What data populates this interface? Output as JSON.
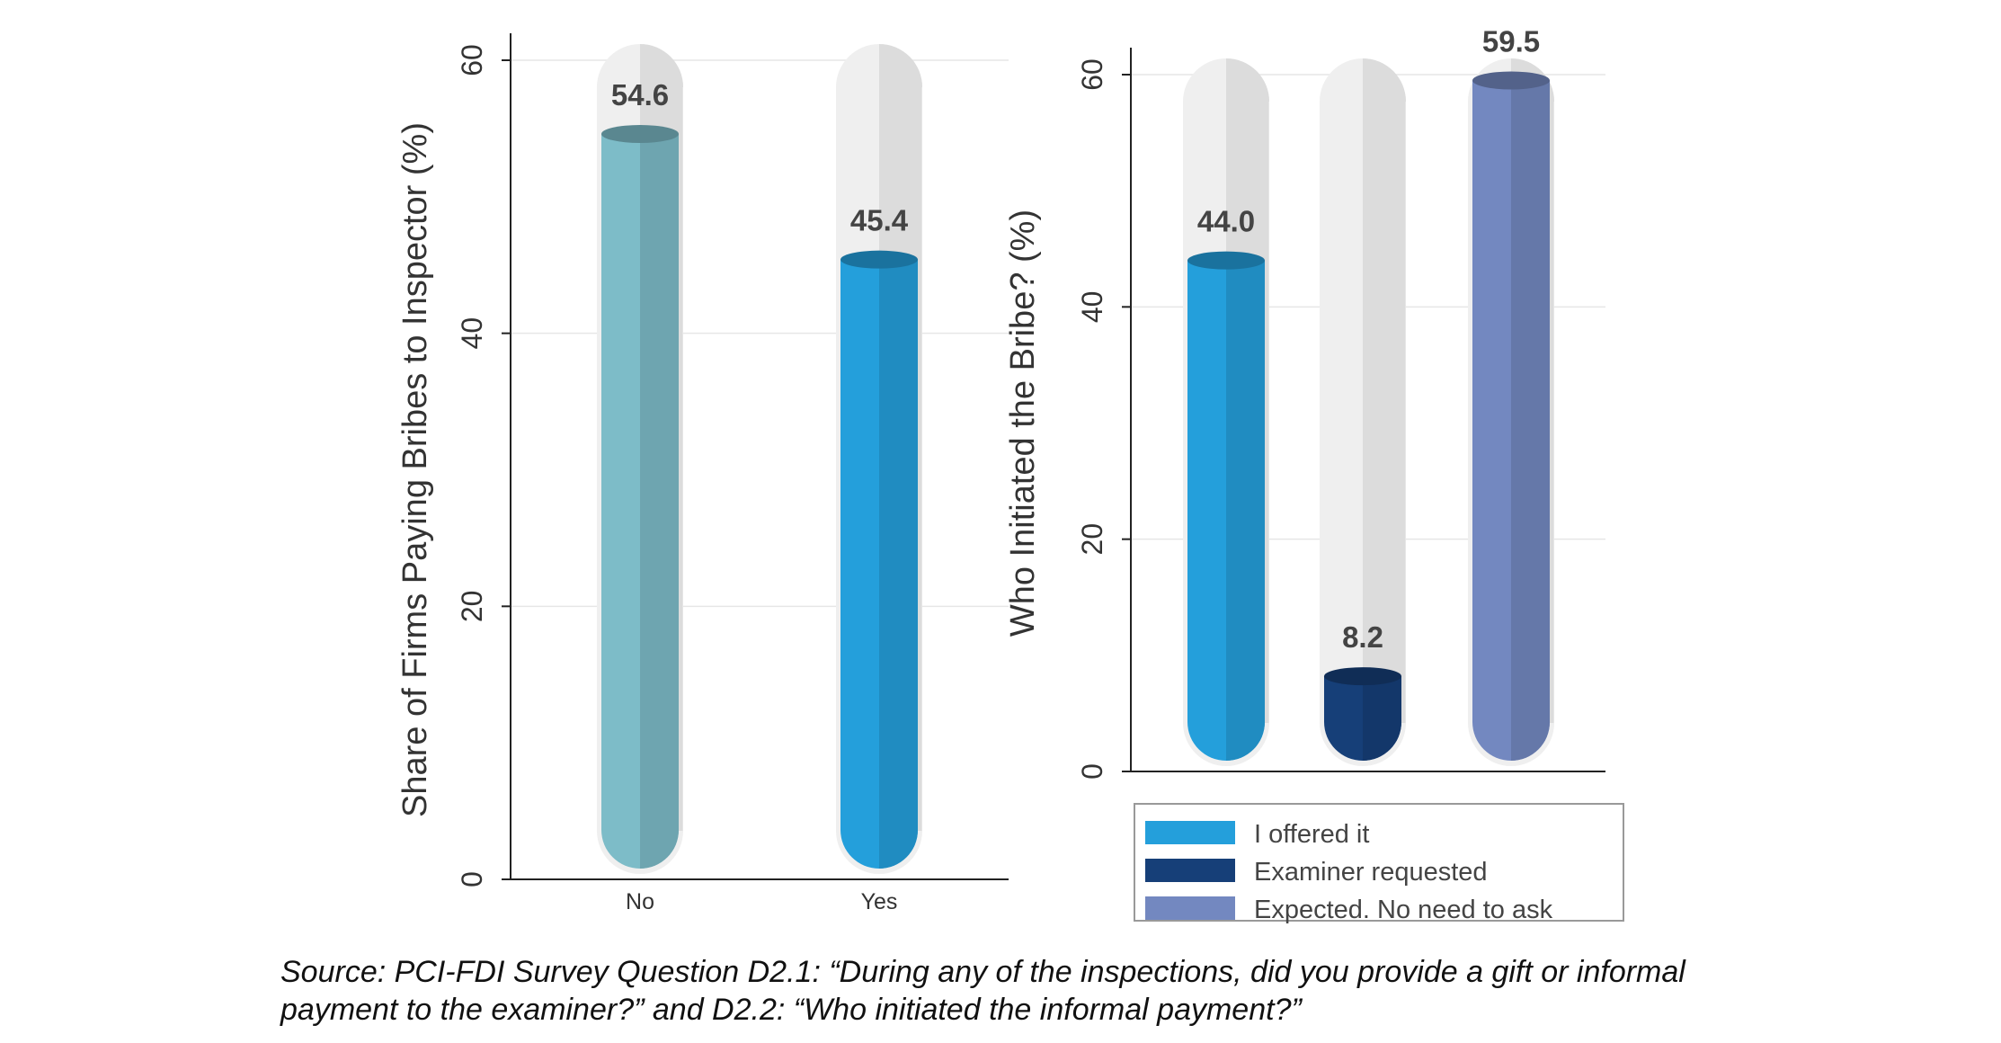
{
  "chart_data": [
    {
      "type": "bar",
      "ylabel": "Share of Firms Paying Bribes to Inspector (%)",
      "ylim": [
        0,
        60
      ],
      "yticks": [
        0,
        20,
        40,
        60
      ],
      "grid": true,
      "categories": [
        "No",
        "Yes"
      ],
      "values": [
        54.6,
        45.4
      ],
      "data_labels": [
        "54.6",
        "45.4"
      ],
      "colors": [
        "#7dbcc8",
        "#249fdb"
      ]
    },
    {
      "type": "bar",
      "ylabel": "Who Initiated the Bribe? (%)",
      "ylim": [
        0,
        60
      ],
      "yticks": [
        0,
        20,
        40,
        60
      ],
      "grid": true,
      "categories": [
        "I offered it",
        "Examiner requested",
        "Expected. No need to ask"
      ],
      "values": [
        44.0,
        8.2,
        59.5
      ],
      "data_labels": [
        "44.0",
        "8.2",
        "59.5"
      ],
      "colors": [
        "#249fdb",
        "#163f78",
        "#7388c0"
      ],
      "legend": {
        "position": "bottom",
        "items": [
          "I offered it",
          "Examiner requested",
          "Expected. No need to ask"
        ]
      }
    }
  ],
  "caption": {
    "line1": "Source: PCI-FDI Survey Question D2.1: “During any of the inspections, did you provide a gift or informal",
    "line2": "payment to the examiner?” and D2.2: “Who initiated the informal payment?”"
  }
}
